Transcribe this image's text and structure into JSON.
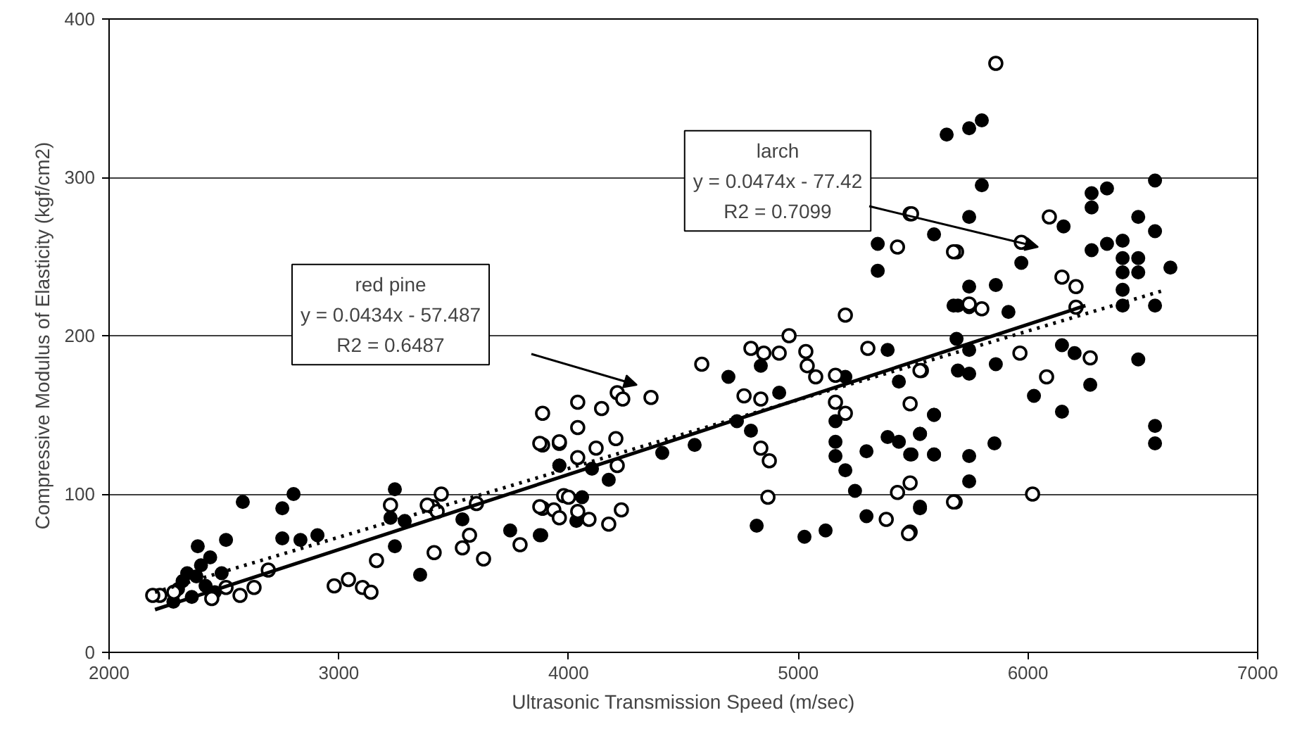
{
  "chart_data": {
    "type": "scatter",
    "xlabel": "Ultrasonic Transmission Speed (m/sec)",
    "ylabel": "Compressive Modulus of Elasticity (kgf/cm2)",
    "xlim": [
      2000,
      7000
    ],
    "xticks": [
      2000,
      3000,
      4000,
      5000,
      6000,
      7000
    ],
    "ylim": [
      0,
      400
    ],
    "yticks": [
      0,
      100,
      200,
      300,
      400
    ],
    "grid": "y",
    "series": [
      {
        "marker": "circle",
        "color": "#000000",
        "x": [
          2386,
          2509,
          2582,
          2754,
          2803,
          2754,
          2833,
          2907,
          3244,
          3225,
          3244,
          3287,
          3354,
          3538,
          3746,
          3875,
          3960,
          2280,
          2300,
          2320,
          2340,
          2360,
          2380,
          2400,
          2420,
          2440,
          2460,
          2490,
          4102,
          4175,
          4059,
          4034,
          3881,
          3960,
          4696,
          4917,
          4837,
          4733,
          4794,
          4549,
          4408,
          5346,
          5346,
          5389,
          5205,
          5438,
          5162,
          5162,
          5162,
          5205,
          5247,
          5297,
          5297,
          5389,
          5438,
          5493,
          5530,
          5591,
          5591,
          5530,
          5027,
          5119,
          4819,
          5676,
          5646,
          5744,
          5799,
          5799,
          5744,
          5591,
          6277,
          6277,
          6344,
          6553,
          6480,
          6553,
          5971,
          6155,
          6277,
          6344,
          6412,
          6412,
          6480,
          6412,
          6480,
          6620,
          6412,
          6412,
          6553,
          5744,
          5860,
          5695,
          5744,
          5915,
          5689,
          5744,
          5860,
          5695,
          5744,
          6148,
          6203,
          6480,
          6271,
          6026,
          6148,
          5591,
          5530,
          5487,
          5591,
          5744,
          5854,
          6553,
          6553,
          5744,
          5530
        ],
        "values": [
          67,
          71,
          95,
          91,
          100,
          72,
          71,
          74,
          103,
          85,
          67,
          83,
          49,
          84,
          77,
          74,
          118,
          32,
          40,
          45,
          50,
          35,
          48,
          55,
          42,
          60,
          38,
          50,
          116,
          109,
          98,
          83,
          74,
          118,
          174,
          164,
          181,
          146,
          140,
          131,
          126,
          258,
          241,
          191,
          174,
          171,
          146,
          133,
          124,
          115,
          102,
          127,
          86,
          136,
          133,
          125,
          138,
          150,
          125,
          92,
          73,
          77,
          80,
          219,
          327,
          331,
          336,
          295,
          275,
          264,
          290,
          281,
          293,
          298,
          275,
          266,
          246,
          269,
          254,
          258,
          260,
          249,
          249,
          240,
          240,
          243,
          229,
          219,
          219,
          231,
          232,
          219,
          218,
          215,
          198,
          191,
          182,
          178,
          176,
          194,
          189,
          185,
          169,
          162,
          152,
          150,
          138,
          125,
          125,
          124,
          132,
          143,
          132,
          108,
          91
        ]
      },
      {
        "marker": "circle_open",
        "color": "#000000",
        "x": [
          5860,
          5487,
          5689,
          5971,
          6093,
          6148,
          6209,
          6209,
          5744,
          5799,
          5965,
          6271,
          5536,
          5487,
          6081,
          5487,
          5683,
          6020,
          5487,
          5493,
          5432,
          5676,
          5205,
          4960,
          4794,
          4850,
          4917,
          5033,
          5039,
          5076,
          4580,
          5162,
          5303,
          5530,
          4764,
          4837,
          5162,
          5205,
          4837,
          4874,
          4868,
          5432,
          5383,
          5480,
          5676,
          4212,
          4236,
          4359,
          4040,
          3887,
          4144,
          4040,
          4206,
          3887,
          3960,
          4040,
          4120,
          4212,
          3979,
          3887,
          3936,
          4040,
          4089,
          4175,
          4230,
          3875,
          3960,
          4000,
          3875,
          3960,
          3789,
          3630,
          3569,
          3538,
          3415,
          3409,
          3446,
          3599,
          3164,
          2980,
          3042,
          3103,
          3140,
          3225,
          2693,
          2631,
          2570,
          2509,
          2447,
          2221,
          2190,
          2282,
          3385,
          3428
        ],
        "values": [
          372,
          277,
          253,
          259,
          275,
          237,
          231,
          218,
          220,
          217,
          189,
          186,
          178,
          157,
          174,
          107,
          95,
          100,
          76,
          277,
          256,
          253,
          213,
          200,
          192,
          189,
          189,
          190,
          181,
          174,
          182,
          175,
          192,
          178,
          162,
          160,
          158,
          151,
          129,
          121,
          98,
          101,
          84,
          75,
          95,
          164,
          160,
          161,
          158,
          151,
          154,
          142,
          135,
          131,
          132,
          123,
          129,
          118,
          99,
          91,
          90,
          89,
          84,
          81,
          90,
          132,
          133,
          98,
          92,
          85,
          68,
          59,
          74,
          66,
          63,
          92,
          100,
          94,
          58,
          42,
          46,
          41,
          38,
          93,
          52,
          41,
          36,
          41,
          34,
          36,
          36,
          38,
          93,
          89
        ]
      },
      {
        "type": "line",
        "line_style": "solid",
        "color": "#000000",
        "x": [
          2200,
          6250
        ],
        "values": [
          27,
          219
        ]
      },
      {
        "type": "line",
        "line_style": "dotted",
        "color": "#000000",
        "x": [
          2200,
          6600
        ],
        "values": [
          38,
          229
        ]
      }
    ],
    "annotations": [
      "red pine\ny = 0.0434x - 57.487\nR2 = 0.6487",
      "larch\ny = 0.0474x - 77.42\nR2 = 0.7099"
    ]
  }
}
